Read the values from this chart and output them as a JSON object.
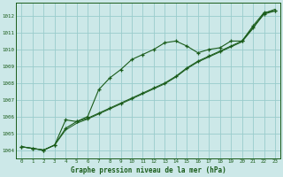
{
  "title": "Graphe pression niveau de la mer (hPa)",
  "bg_color": "#cce8e8",
  "grid_color": "#99cccc",
  "line_color": "#1a5c1a",
  "marker_color": "#1a5c1a",
  "xlim": [
    -0.5,
    23.5
  ],
  "ylim": [
    1003.5,
    1012.8
  ],
  "yticks": [
    1004,
    1005,
    1006,
    1007,
    1008,
    1009,
    1010,
    1011,
    1012
  ],
  "xticks": [
    0,
    1,
    2,
    3,
    4,
    5,
    6,
    7,
    8,
    9,
    10,
    11,
    12,
    13,
    14,
    15,
    16,
    17,
    18,
    19,
    20,
    21,
    22,
    23
  ],
  "series_wavy": [
    1004.2,
    1004.1,
    1004.0,
    1004.3,
    1005.8,
    1005.7,
    1006.0,
    1007.6,
    1008.3,
    1008.8,
    1009.4,
    1009.7,
    1010.0,
    1010.4,
    1010.5,
    1010.2,
    1009.8,
    1010.0,
    1010.1,
    1010.5,
    1010.5,
    1011.4,
    1012.2,
    1012.3
  ],
  "series_straight1": [
    1004.2,
    1004.1,
    1004.0,
    1004.3,
    1005.3,
    1005.7,
    1005.9,
    1006.2,
    1006.5,
    1006.8,
    1007.1,
    1007.4,
    1007.7,
    1008.0,
    1008.4,
    1008.9,
    1009.3,
    1009.6,
    1009.9,
    1010.2,
    1010.5,
    1011.3,
    1012.1,
    1012.3
  ],
  "series_straight2": [
    1004.2,
    1004.1,
    1004.0,
    1004.3,
    1005.2,
    1005.6,
    1005.85,
    1006.15,
    1006.45,
    1006.75,
    1007.05,
    1007.35,
    1007.65,
    1007.95,
    1008.35,
    1008.85,
    1009.25,
    1009.55,
    1009.85,
    1010.15,
    1010.45,
    1011.25,
    1012.15,
    1012.4
  ]
}
